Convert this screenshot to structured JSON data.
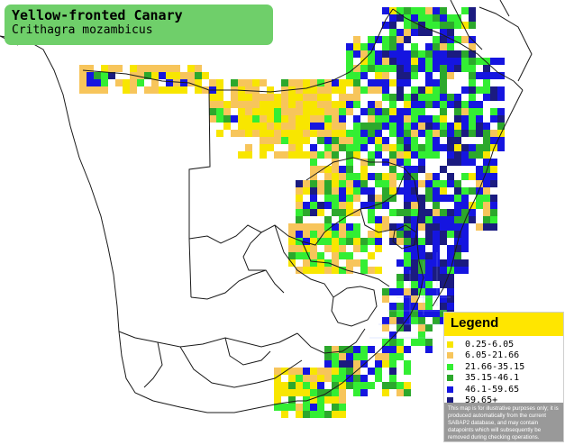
{
  "map": {
    "title": "Yellow-fronted Canary",
    "subtitle": "Crithagra mozambicus"
  },
  "legend": {
    "title": "Legend",
    "items": [
      {
        "label": "0.25-6.05",
        "color": "#f8e600"
      },
      {
        "label": "6.05-21.66",
        "color": "#f7c55b"
      },
      {
        "label": "21.66-35.15",
        "color": "#33ee33"
      },
      {
        "label": "35.15-46.1",
        "color": "#2ca82c"
      },
      {
        "label": "46.1-59.65",
        "color": "#1515e0"
      },
      {
        "label": "59.65+",
        "color": "#1b1b80"
      }
    ],
    "disclaimer": "This map is for illustrative purposes only; it is produced automatically from the current SABAP2 database, and may contain datapoints which will subsequently be removed during checking operations."
  }
}
